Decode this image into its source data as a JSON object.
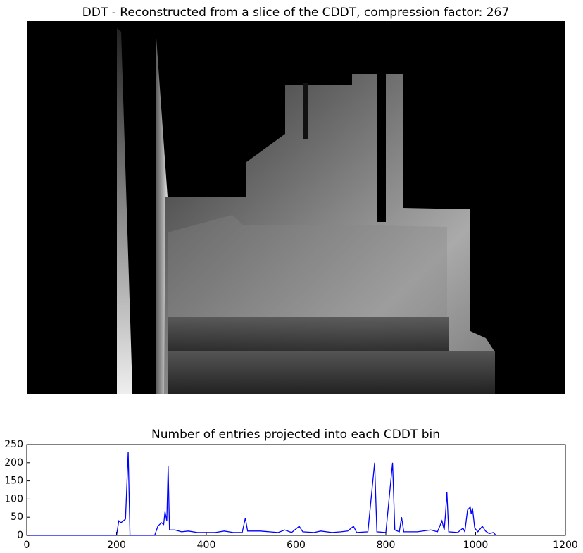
{
  "chart_data": [
    {
      "type": "image",
      "title": "DDT - Reconstructed from a slice of the CDDT, compression factor: 267"
    },
    {
      "type": "line",
      "title": "Number of entries projected into each CDDT bin",
      "color": "#0000ff",
      "x": [
        0,
        200,
        205,
        210,
        215,
        220,
        226,
        230,
        285,
        292,
        300,
        305,
        308,
        312,
        315,
        318,
        330,
        345,
        360,
        380,
        420,
        440,
        460,
        480,
        487,
        492,
        520,
        560,
        575,
        590,
        607,
        615,
        640,
        655,
        680,
        700,
        715,
        728,
        735,
        760,
        775,
        780,
        800,
        815,
        820,
        830,
        835,
        840,
        870,
        900,
        915,
        925,
        930,
        933,
        936,
        940,
        960,
        972,
        976,
        982,
        988,
        990,
        993,
        998,
        1005,
        1015,
        1022,
        1030,
        1040,
        1045
      ],
      "values": [
        0,
        0,
        40,
        35,
        40,
        45,
        230,
        0,
        0,
        25,
        35,
        30,
        65,
        40,
        190,
        15,
        15,
        10,
        12,
        8,
        8,
        12,
        8,
        8,
        48,
        12,
        12,
        8,
        15,
        8,
        25,
        10,
        8,
        12,
        8,
        10,
        12,
        25,
        8,
        10,
        200,
        10,
        8,
        200,
        15,
        10,
        50,
        10,
        10,
        15,
        10,
        40,
        15,
        60,
        120,
        10,
        8,
        20,
        10,
        70,
        78,
        60,
        75,
        20,
        10,
        25,
        12,
        5,
        8,
        0
      ],
      "xlim": [
        0,
        1200
      ],
      "ylim": [
        0,
        250
      ],
      "xticks": [
        0,
        200,
        400,
        600,
        800,
        1000,
        1200
      ],
      "yticks": [
        0,
        50,
        100,
        150,
        200,
        250
      ]
    }
  ]
}
